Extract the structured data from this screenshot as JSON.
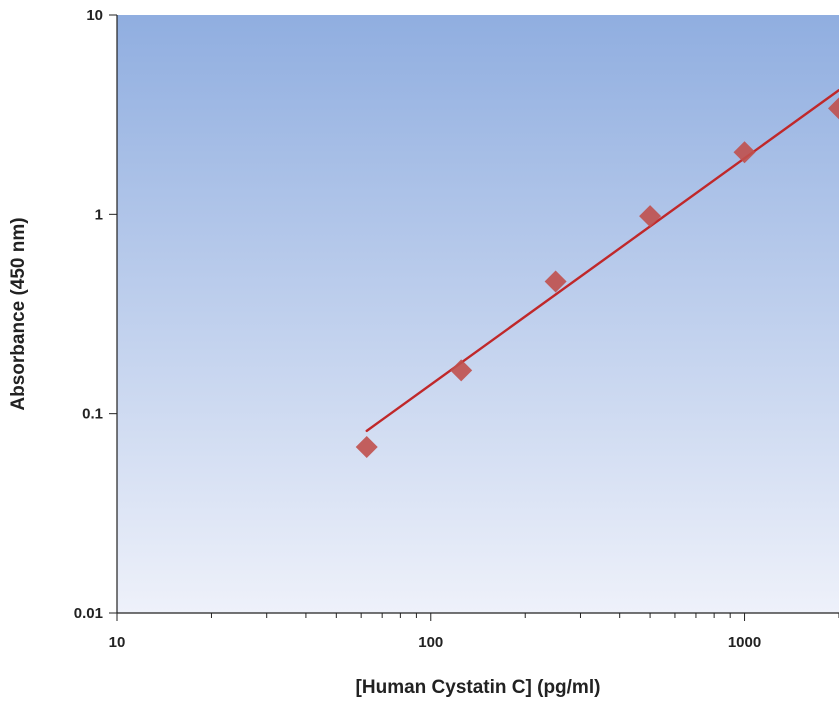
{
  "chart_data": {
    "type": "scatter",
    "xlabel": "[Human Cystatin C] (pg/ml)",
    "ylabel": "Absorbance (450 nm)",
    "x_scale": "log",
    "y_scale": "log",
    "xlim": [
      10,
      2000
    ],
    "ylim": [
      0.01,
      10
    ],
    "x_ticks": [
      10,
      100,
      1000
    ],
    "x_tick_labels": [
      "10",
      "100",
      "1000"
    ],
    "y_ticks": [
      0.01,
      0.1,
      1,
      10
    ],
    "y_tick_labels": [
      "0.01",
      "0.1",
      "1",
      "10"
    ],
    "grid": false,
    "legend": "none",
    "series": [
      {
        "marker": "diamond",
        "color": "#c0504d",
        "x": [
          62.5,
          125,
          250,
          500,
          1000,
          2000
        ],
        "y": [
          0.068,
          0.165,
          0.46,
          0.98,
          2.05,
          3.4
        ]
      }
    ],
    "fit_line": {
      "color": "#c0282a",
      "x": [
        62.5,
        2000
      ],
      "y": [
        0.082,
        4.2
      ]
    },
    "colors": {
      "plot_bg_top": "#90aee0",
      "plot_bg_bottom": "#eef1fa",
      "marker": "#c0504d",
      "fit_line": "#c0282a"
    }
  }
}
